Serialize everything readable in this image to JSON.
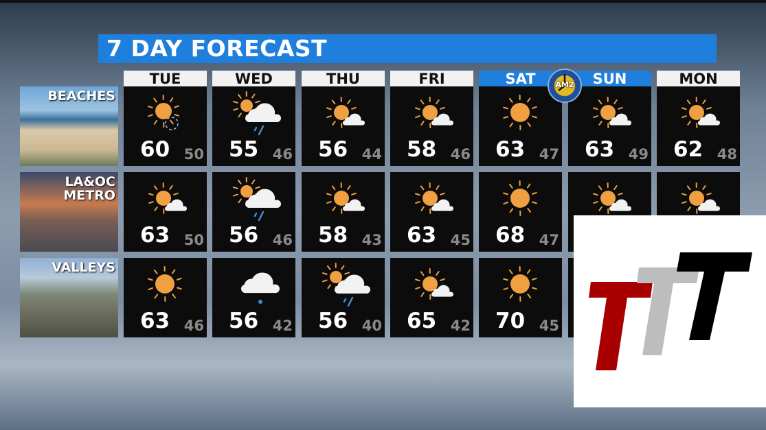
{
  "title": "7 DAY FORECAST",
  "days": [
    {
      "label": "TUE",
      "weekend": false
    },
    {
      "label": "WED",
      "weekend": false
    },
    {
      "label": "THU",
      "weekend": false
    },
    {
      "label": "FRI",
      "weekend": false
    },
    {
      "label": "SAT",
      "weekend": true
    },
    {
      "label": "SUN",
      "weekend": true
    },
    {
      "label": "MON",
      "weekend": false
    }
  ],
  "regions": [
    {
      "label": "BEACHES",
      "cells": [
        {
          "icon": "sun-haze",
          "hi": "60",
          "lo": "50"
        },
        {
          "icon": "sun-cloud-rain",
          "hi": "55",
          "lo": "46"
        },
        {
          "icon": "partly-sunny",
          "hi": "56",
          "lo": "44"
        },
        {
          "icon": "partly-sunny",
          "hi": "58",
          "lo": "46"
        },
        {
          "icon": "sun",
          "hi": "63",
          "lo": "47"
        },
        {
          "icon": "partly-sunny",
          "hi": "63",
          "lo": "49"
        },
        {
          "icon": "partly-sunny",
          "hi": "62",
          "lo": "48"
        }
      ]
    },
    {
      "label": "LA&OC\nMETRO",
      "cells": [
        {
          "icon": "partly-sunny",
          "hi": "63",
          "lo": "50"
        },
        {
          "icon": "sun-cloud-rain",
          "hi": "56",
          "lo": "46"
        },
        {
          "icon": "partly-sunny",
          "hi": "58",
          "lo": "43"
        },
        {
          "icon": "partly-sunny",
          "hi": "63",
          "lo": "45"
        },
        {
          "icon": "sun",
          "hi": "68",
          "lo": "47"
        },
        {
          "icon": "partly-sunny"
        },
        {
          "icon": "partly-sunny"
        }
      ]
    },
    {
      "label": "VALLEYS",
      "cells": [
        {
          "icon": "sun",
          "hi": "63",
          "lo": "46"
        },
        {
          "icon": "cloud-rain",
          "hi": "56",
          "lo": "42"
        },
        {
          "icon": "sun-cloud-rain",
          "hi": "56",
          "lo": "40"
        },
        {
          "icon": "partly-sunny",
          "hi": "65",
          "lo": "42"
        },
        {
          "icon": "sun",
          "hi": "70",
          "lo": "45"
        },
        {},
        {}
      ]
    }
  ],
  "station_bug": "AM2",
  "logo": {
    "text": "TTT",
    "colors": [
      "#a80000",
      "#bdbdbd",
      "#000000"
    ]
  },
  "colors": {
    "accent": "#1f7fdc",
    "sun": "#f0a040",
    "cell": "#0c0c0c"
  }
}
